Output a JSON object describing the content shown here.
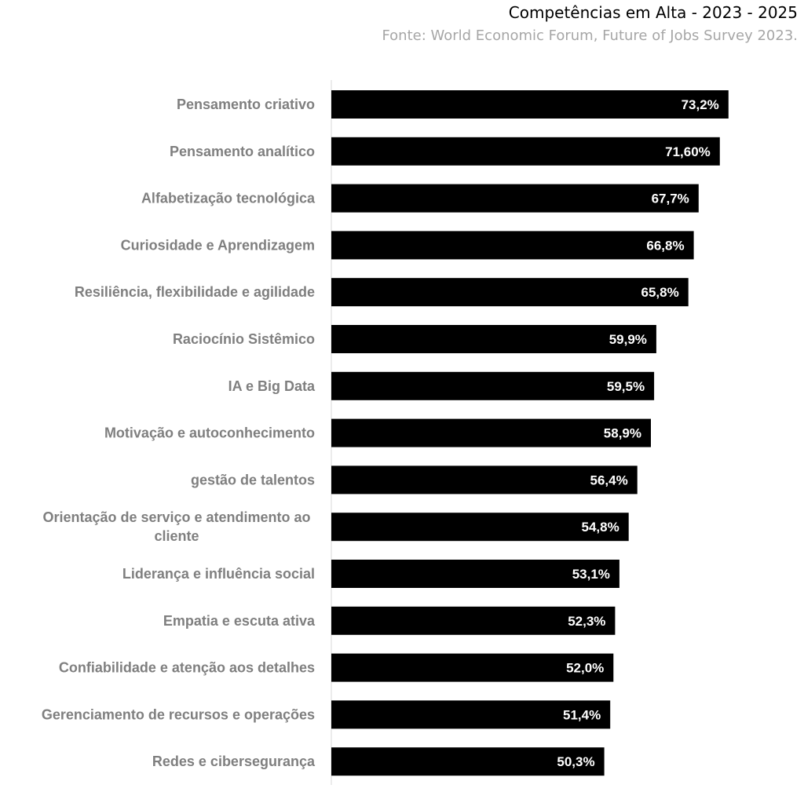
{
  "chart_data": {
    "type": "bar",
    "orientation": "horizontal",
    "title": "Competências em Alta - 2023 - 2025",
    "subtitle": "Fonte: World Economic Forum, Future of Jobs Survey 2023.",
    "categories": [
      "Pensamento criativo",
      "Pensamento analítico",
      "Alfabetização tecnológica",
      "Curiosidade e Aprendizagem",
      "Resiliência, flexibilidade e agilidade",
      "Raciocínio Sistêmico",
      "IA e Big Data",
      "Motivação e autoconhecimento",
      "gestão de talentos",
      "Orientação de serviço e atendimento ao cliente",
      "Liderança e influência social",
      "Empatia e escuta ativa",
      "Confiabilidade e atenção aos detalhes",
      "Gerenciamento de recursos e operações",
      "Redes e cibersegurança"
    ],
    "category_lines": [
      [
        "Pensamento criativo"
      ],
      [
        "Pensamento analítico"
      ],
      [
        "Alfabetização tecnológica"
      ],
      [
        "Curiosidade e Aprendizagem"
      ],
      [
        "Resiliência, flexibilidade e agilidade"
      ],
      [
        "Raciocínio Sistêmico"
      ],
      [
        "IA e Big Data"
      ],
      [
        "Motivação e autoconhecimento"
      ],
      [
        "gestão de talentos"
      ],
      [
        "Orientação de serviço e atendimento ao",
        "cliente"
      ],
      [
        "Liderança e influência social"
      ],
      [
        "Empatia e escuta ativa"
      ],
      [
        "Confiabilidade e atenção aos detalhes"
      ],
      [
        "Gerenciamento de recursos e operações"
      ],
      [
        "Redes e cibersegurança"
      ]
    ],
    "values": [
      73.2,
      71.6,
      67.7,
      66.8,
      65.8,
      59.9,
      59.5,
      58.9,
      56.4,
      54.8,
      53.1,
      52.3,
      52.0,
      51.4,
      50.3
    ],
    "value_labels": [
      "73,2%",
      "71,60%",
      "67,7%",
      "66,8%",
      "65,8%",
      "59,9%",
      "59,5%",
      "58,9%",
      "56,4%",
      "54,8%",
      "53,1%",
      "52,3%",
      "52,0%",
      "51,4%",
      "50,3%"
    ],
    "xlim": [
      0,
      100
    ],
    "grid": false,
    "legend": "none",
    "colors": {
      "bar": "#000000",
      "category_text": "#7f7f7f",
      "value_text": "#ffffff",
      "axis": "#d9d9d9",
      "title": "#000000",
      "subtitle": "#a6a6a6"
    }
  }
}
